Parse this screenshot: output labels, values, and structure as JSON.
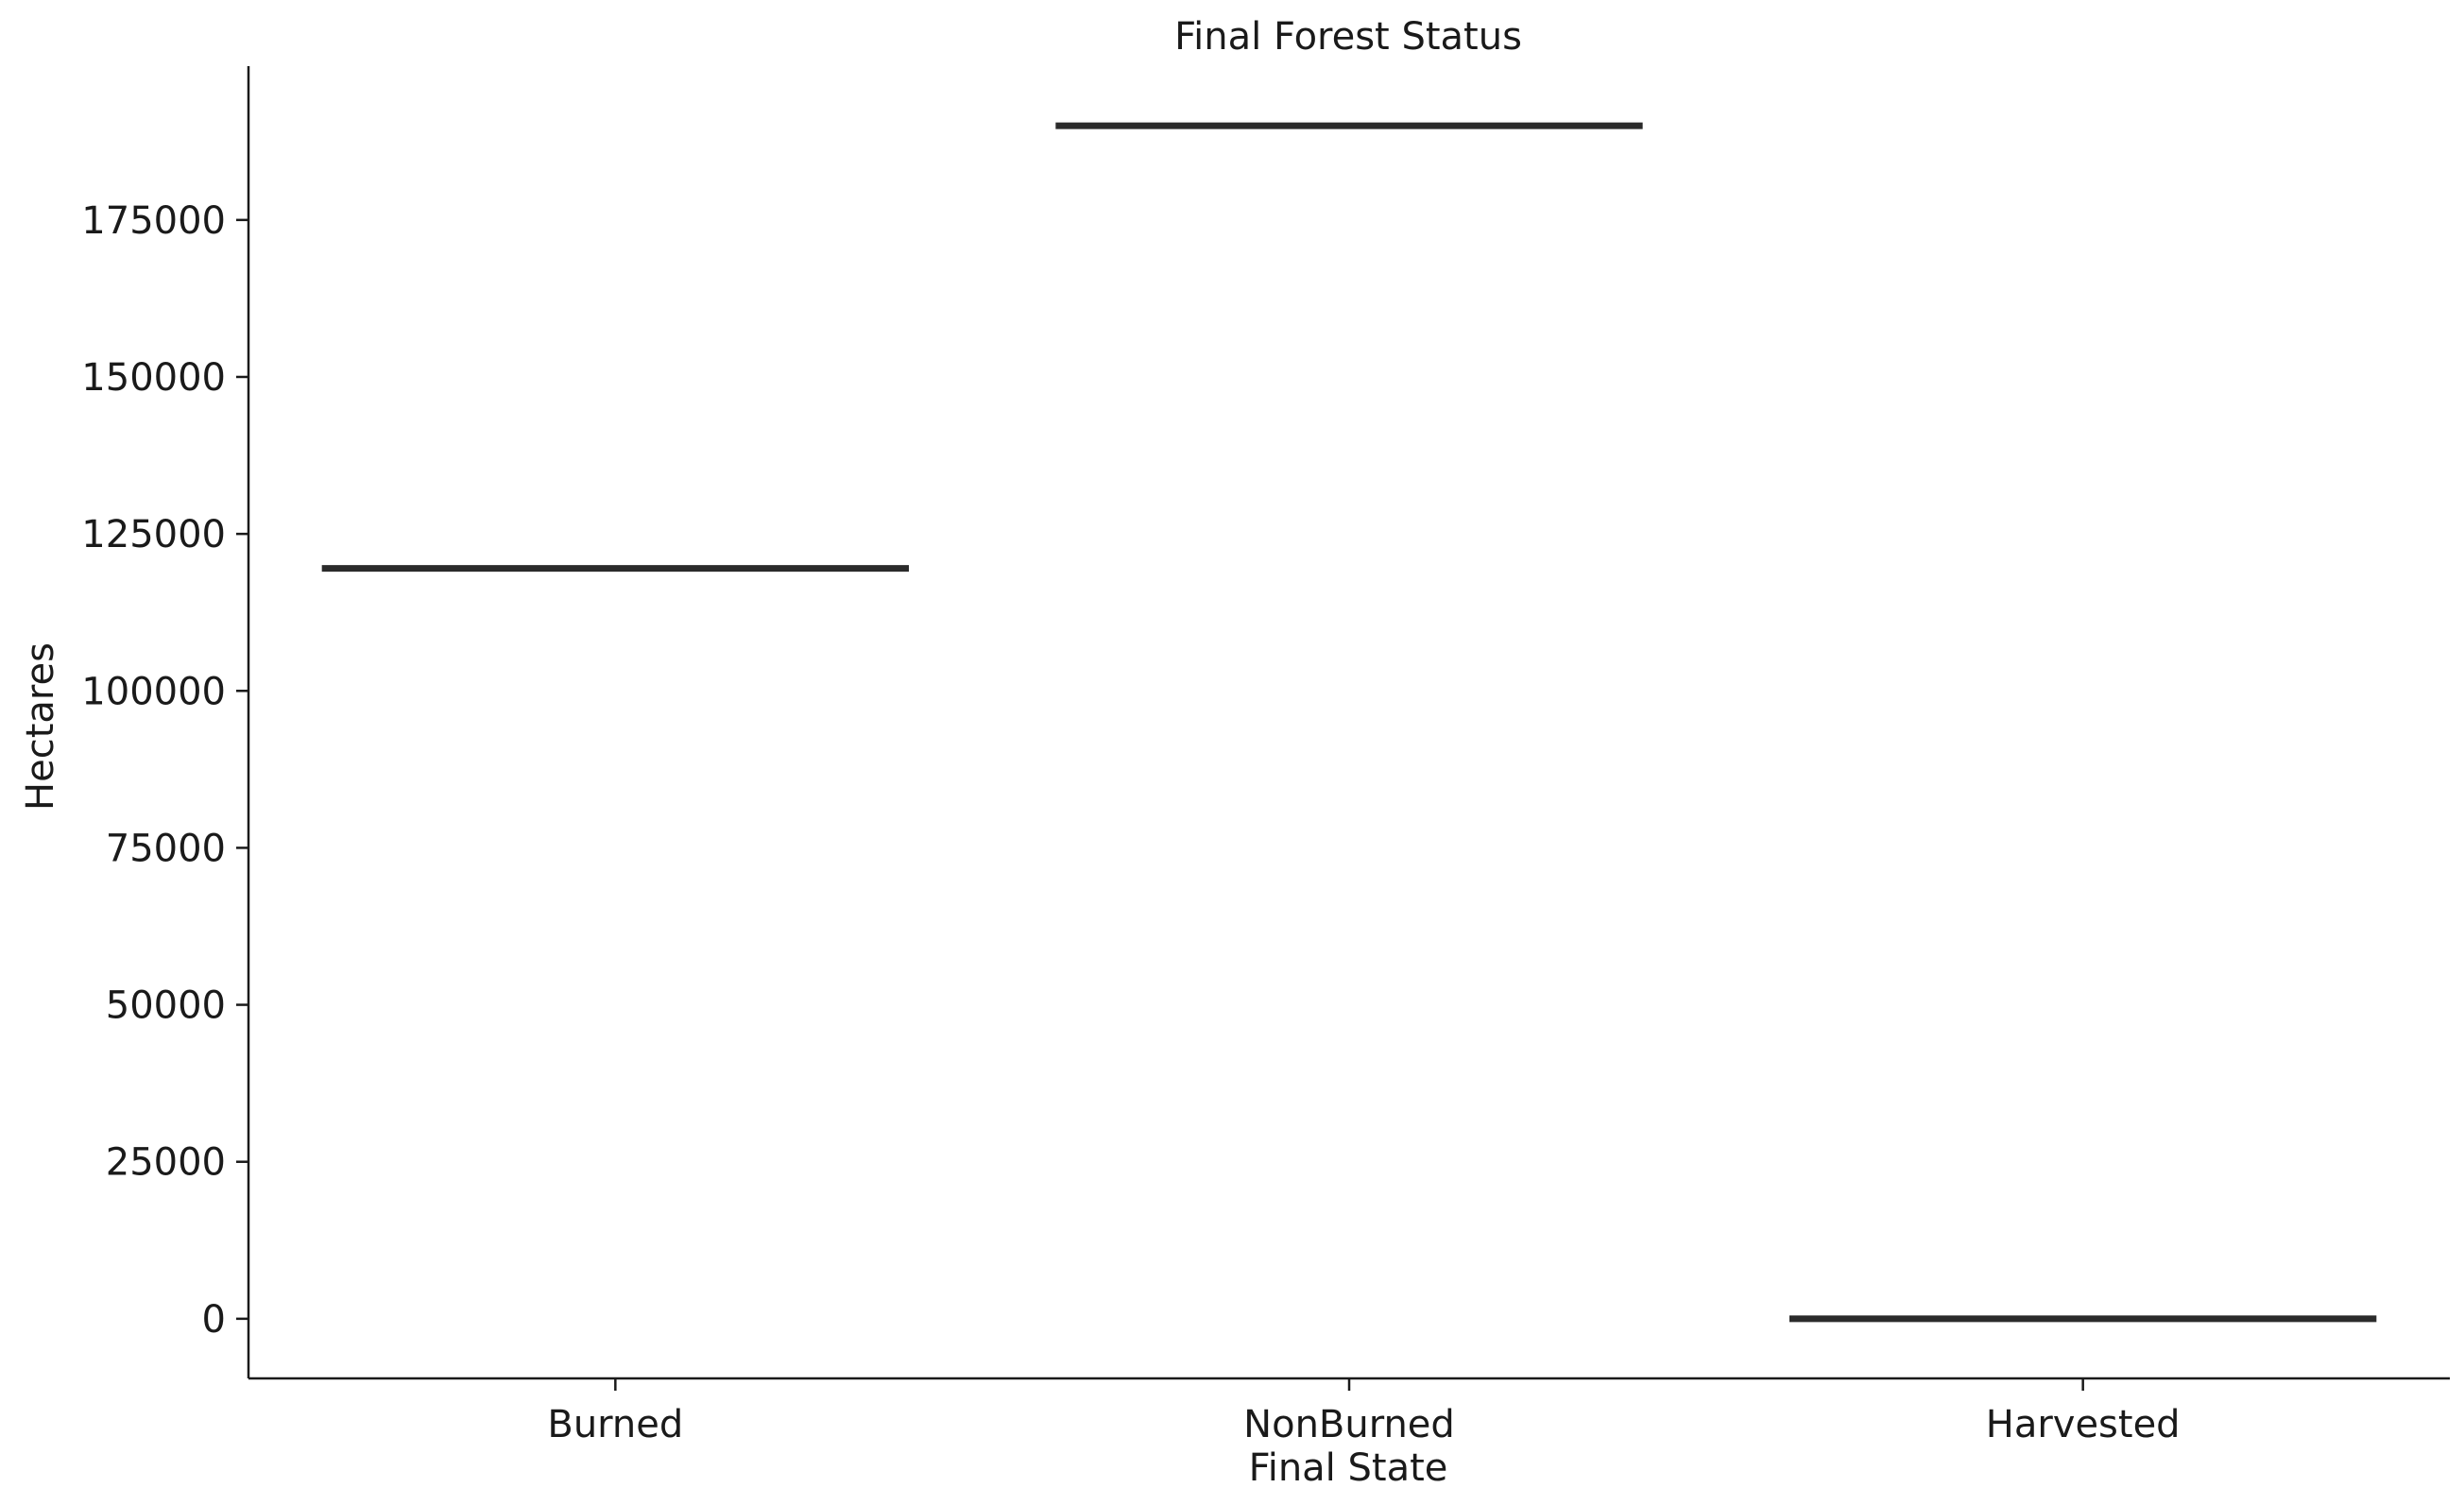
{
  "chart_data": {
    "type": "bar",
    "title": "Final Forest Status",
    "xlabel": "Final State",
    "ylabel": "Hectares",
    "categories": [
      "Burned",
      "NonBurned",
      "Harvested"
    ],
    "values": [
      119500,
      190000,
      0
    ],
    "yticks": [
      0,
      25000,
      50000,
      75000,
      100000,
      125000,
      150000,
      175000
    ],
    "ytick_labels": [
      "0",
      "25000",
      "50000",
      "75000",
      "100000",
      "125000",
      "150000",
      "175000"
    ],
    "ylim": [
      -9500,
      199500
    ],
    "grid": false,
    "legend": "none",
    "mark_color": "#2b2b2b"
  }
}
